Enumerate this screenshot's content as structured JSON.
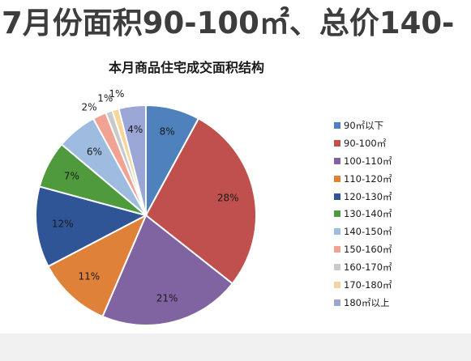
{
  "headline": "7月份面积90-100㎡、总价140-",
  "chart_data": {
    "type": "pie",
    "title": "本月商品住宅成交面积结构",
    "categories": [
      "90㎡以下",
      "90-100㎡",
      "100-110㎡",
      "110-120㎡",
      "120-130㎡",
      "130-140㎡",
      "140-150㎡",
      "150-160㎡",
      "160-170㎡",
      "170-180㎡",
      "180㎡以上"
    ],
    "values": [
      8,
      28,
      21,
      11,
      12,
      7,
      6,
      2,
      1,
      1,
      4
    ],
    "labels": [
      "8%",
      "28%",
      "21%",
      "11%",
      "12%",
      "7%",
      "6%",
      "2%",
      "1%",
      "1%",
      "4%"
    ],
    "colors": [
      "#4f81bd",
      "#c0504d",
      "#8064a2",
      "#e0813a",
      "#2f5597",
      "#4e9a3c",
      "#9dbce0",
      "#f2a293",
      "#c9c9c9",
      "#f5d79a",
      "#9aa6d6"
    ],
    "legend_position": "right"
  }
}
